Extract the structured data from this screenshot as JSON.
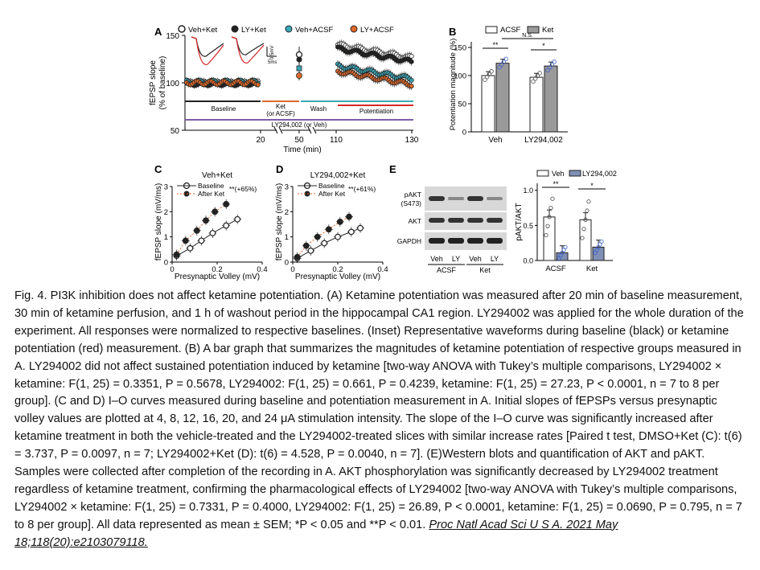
{
  "panelA": {
    "label": "A",
    "legend": [
      "Veh+Ket",
      "LY+Ket",
      "Veh+ACSF",
      "LY+ACSF"
    ],
    "y_ticks": [
      "150",
      "100",
      "50"
    ],
    "y_label_1": "fEPSP slope",
    "y_label_2": "(% of baseline)",
    "x_ticks": [
      "20",
      "50",
      "110",
      "130"
    ],
    "x_label": "Time (min)",
    "scale_mv": "0.5mV",
    "scale_ms": "5ms",
    "bar_baseline": "Baseline",
    "bar_ket_1": "Ket",
    "bar_ket_2": "(or ACSF)",
    "bar_wash": "Wash",
    "bar_potentiation": "Potentiation",
    "bar_ly": "LY294,002 (or Veh)",
    "colors": {
      "veh_ket": "#222222",
      "ly_ket": "#2f6f7a",
      "veh_acsf": "#3aa8b8",
      "ly_acsf": "#e0682a",
      "red": "#d62828",
      "purple": "#7b5ea7"
    }
  },
  "panelB": {
    "label": "B",
    "legend": [
      "ACSF",
      "Ket"
    ],
    "y_label": "Potentiation magnitude (%)",
    "y_ticks": [
      "0",
      "50",
      "100",
      "150"
    ],
    "x_groups": [
      "Veh",
      "LY294,002"
    ],
    "sig": [
      "**",
      "N.S.",
      "*"
    ],
    "chart_data": {
      "type": "bar",
      "categories": [
        "Veh",
        "LY294,002"
      ],
      "series": [
        {
          "name": "ACSF",
          "values": [
            100,
            97
          ]
        },
        {
          "name": "Ket",
          "values": [
            122,
            117
          ]
        }
      ],
      "ylim": [
        0,
        160
      ],
      "ylabel": "Potentiation magnitude (%)"
    }
  },
  "panelC": {
    "label": "C",
    "title": "Veh+Ket",
    "legend": [
      "Baseline",
      "After Ket"
    ],
    "sig": "**(+65%)",
    "y_label": "fEPSP slope (mV/ms)",
    "x_label": "Presynaptic Volley (mV)",
    "y_ticks": [
      "0",
      "1",
      "2",
      "3"
    ],
    "x_ticks": [
      "0",
      "0.2",
      "0.4"
    ],
    "chart_data": {
      "type": "scatter",
      "series": [
        {
          "name": "Baseline",
          "x": [
            0.02,
            0.08,
            0.13,
            0.18,
            0.24,
            0.29
          ],
          "y": [
            0.25,
            0.55,
            0.85,
            1.15,
            1.45,
            1.7
          ]
        },
        {
          "name": "After Ket",
          "x": [
            0.02,
            0.06,
            0.11,
            0.15,
            0.19,
            0.24
          ],
          "y": [
            0.3,
            0.85,
            1.25,
            1.65,
            2.0,
            2.3
          ]
        }
      ],
      "xlim": [
        0,
        0.4
      ],
      "ylim": [
        0,
        3
      ]
    }
  },
  "panelD": {
    "label": "D",
    "title": "LY294,002+Ket",
    "legend": [
      "Baseline",
      "After Ket"
    ],
    "sig": "**(+61%)",
    "y_label": "fEPSP slope (mV/ms)",
    "x_label": "Presynaptic Volley (mV)",
    "y_ticks": [
      "0",
      "1",
      "2",
      "3"
    ],
    "x_ticks": [
      "0",
      "0.2",
      "0.4"
    ],
    "chart_data": {
      "type": "scatter",
      "series": [
        {
          "name": "Baseline",
          "x": [
            0.02,
            0.08,
            0.14,
            0.2,
            0.26,
            0.3
          ],
          "y": [
            0.15,
            0.45,
            0.75,
            1.0,
            1.2,
            1.35
          ]
        },
        {
          "name": "After Ket",
          "x": [
            0.02,
            0.06,
            0.11,
            0.16,
            0.21,
            0.25
          ],
          "y": [
            0.2,
            0.65,
            1.0,
            1.3,
            1.6,
            1.8
          ]
        }
      ],
      "xlim": [
        0,
        0.4
      ],
      "ylim": [
        0,
        3
      ]
    }
  },
  "panelE": {
    "label": "E",
    "blot_labels": [
      "pAKT",
      "(S473)",
      "AKT",
      "GAPDH"
    ],
    "lanes": [
      "Veh",
      "LY",
      "Veh",
      "LY"
    ],
    "groups": [
      "ACSF",
      "Ket"
    ],
    "legend": [
      "Veh",
      "LY294,002"
    ],
    "y_label": "pAKT/AKT",
    "y_ticks": [
      "0.0",
      "0.5",
      "1.0"
    ],
    "sig": [
      "**",
      "*"
    ],
    "chart_data": {
      "type": "bar",
      "categories": [
        "ACSF",
        "Ket"
      ],
      "series": [
        {
          "name": "Veh",
          "values": [
            0.62,
            0.58
          ]
        },
        {
          "name": "LY294,002",
          "values": [
            0.11,
            0.19
          ]
        }
      ],
      "ylim": [
        0,
        1.1
      ],
      "ylabel": "pAKT/AKT"
    }
  },
  "caption": {
    "text": "Fig. 4. PI3K inhibition does not affect ketamine potentiation. (A) Ketamine potentiation was measured after 20 min of baseline measurement, 30 min of ketamine perfusion, and 1 h of washout period in the hippocampal CA1 region. LY294002 was applied for the whole duration of the experiment. All responses were normalized to respective baselines. (Inset) Representative waveforms during baseline (black) or ketamine potentiation (red) measurement. (B) A bar graph that summarizes the magnitudes of ketamine potentiation of respective groups measured in A. LY294002 did not affect sustained potentiation induced by ketamine [two-way ANOVA with Tukey’s multiple comparisons, LY294002 × ketamine: F(1, 25) = 0.3351, P = 0.5678, LY294002: F(1, 25) = 0.661, P = 0.4239, ketamine: F(1, 25) = 27.23, P < 0.0001, n = 7 to 8 per group]. (C and D) I–O curves measured during baseline and potentiation measurement in A. Initial slopes of fEPSPs versus presynaptic volley values are plotted at 4, 8, 12, 16, 20, and 24 μA stimulation intensity. The slope of the I–O curve was significantly increased after ketamine treatment in both the vehicle-treated and the LY294002-treated slices with similar increase rates [Paired t test, DMSO+Ket (C): t(6) = 3.737, P = 0.0097, n = 7; LY294002+Ket (D): t(6) = 4.528, P = 0.0040, n = 7]. (E)Western blots and quantification of AKT and pAKT. Samples were collected after completion of the recording in A. AKT phosphorylation was significantly decreased by LY294002 treatment regardless of ketamine treatment, confirming the pharmacological effects of LY294002 [two-way ANOVA with Tukey’s multiple comparisons, LY294002 × ketamine: F(1, 25) = 0.7331, P = 0.4000, LY294002: F(1, 25) = 26.89, P < 0.0001, ketamine: F(1, 25) = 0.0690, P = 0.795, n = 7 to 8 per group]. All data represented as mean ± SEM; *P < 0.05 and **P < 0.01.",
    "citation": "Proc Natl Acad Sci U S A. 2021 May 18;118(20):e2103079118."
  }
}
